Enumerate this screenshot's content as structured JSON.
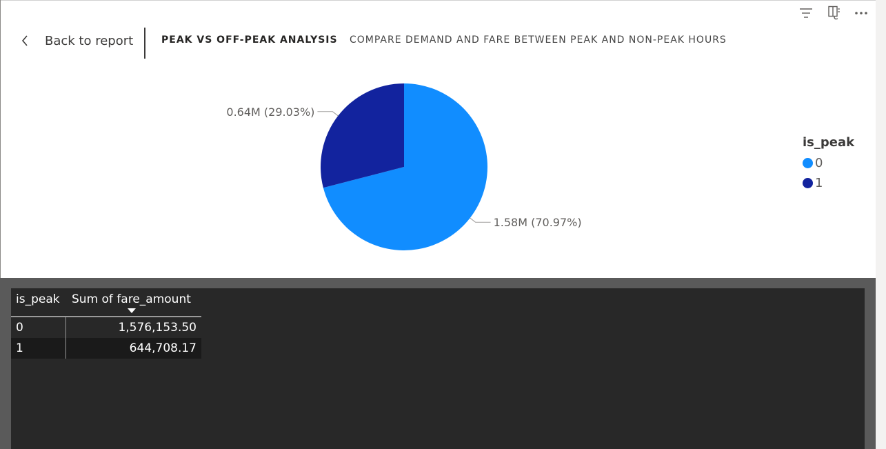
{
  "header": {
    "back_label": "Back to report",
    "title": "PEAK VS OFF-PEAK ANALYSIS",
    "subtitle": "COMPARE DEMAND AND FARE BETWEEN PEAK AND NON-PEAK HOURS"
  },
  "toolbar": {
    "icons": [
      "filter-icon",
      "focus-mode-icon",
      "more-options-icon"
    ]
  },
  "legend": {
    "title": "is_peak",
    "items": [
      {
        "label": "0",
        "color": "#118DFF"
      },
      {
        "label": "1",
        "color": "#12239E"
      }
    ]
  },
  "chart_data": {
    "type": "pie",
    "categories": [
      "0",
      "1"
    ],
    "values": [
      1576153.5,
      644708.17
    ],
    "percent": [
      70.97,
      29.03
    ],
    "data_labels": [
      "1.58M (70.97%)",
      "0.64M (29.03%)"
    ],
    "colors": [
      "#118DFF",
      "#12239E"
    ],
    "legend_title": "is_peak",
    "legend_position": "right"
  },
  "table": {
    "headers": [
      "is_peak",
      "Sum of fare_amount"
    ],
    "rows": [
      {
        "is_peak": "0",
        "sum": "1,576,153.50"
      },
      {
        "is_peak": "1",
        "sum": "644,708.17"
      }
    ]
  }
}
